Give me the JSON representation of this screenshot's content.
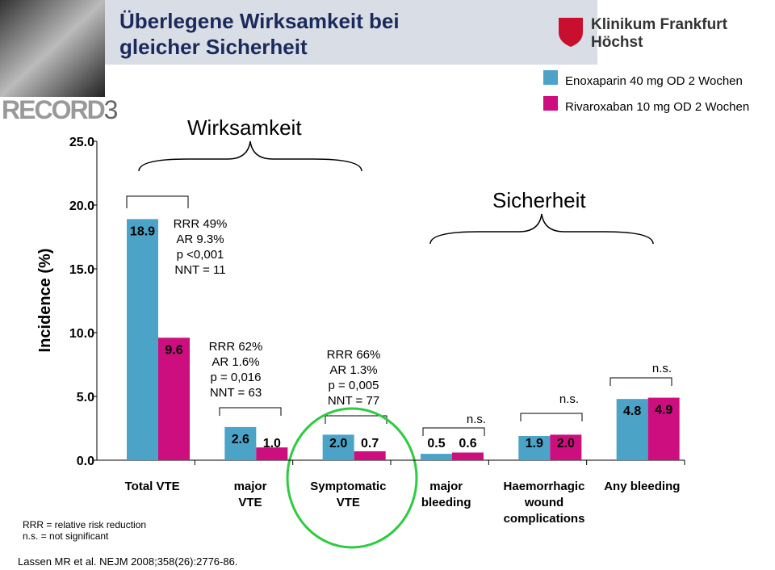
{
  "header": {
    "title": "Überlegene Wirksamkeit bei\ngleicher Sicherheit",
    "logo_text": "Klinikum Frankfurt Höchst",
    "study": "RECORD",
    "study_number": "3"
  },
  "chart_data": {
    "type": "bar",
    "ylabel": "Incidence (%)",
    "categories": [
      "Total VTE",
      "major\nVTE",
      "Symptomatic\nVTE",
      "major\nbleeding",
      "Haemorrhagic\nwound\ncomplications",
      "Any bleeding"
    ],
    "series": [
      {
        "name": "Enoxaparin 40 mg OD 2 Wochen",
        "color": "#4ba3c7",
        "values": [
          18.9,
          2.6,
          2.0,
          0.5,
          1.9,
          4.8
        ],
        "value_labels": [
          "18.9",
          "2.6",
          "2.0",
          "0.5",
          "1.9",
          "4.8"
        ]
      },
      {
        "name": "Rivaroxaban 10 mg OD 2 Wochen",
        "color": "#cc0e7f",
        "values": [
          9.6,
          1.0,
          0.7,
          0.6,
          2.0,
          4.9
        ],
        "value_labels": [
          "9.6",
          "1.0",
          "0.7",
          "0.6",
          "2.0",
          "4.9"
        ]
      }
    ],
    "ylim": [
      0,
      25
    ],
    "yticks": [
      {
        "value": 0,
        "label": "0.0"
      },
      {
        "value": 5,
        "label": "5.0"
      },
      {
        "value": 10,
        "label": "10.0"
      },
      {
        "value": 15,
        "label": "15.0"
      },
      {
        "value": 20,
        "label": "20.0"
      },
      {
        "value": 25,
        "label": "25.0"
      }
    ],
    "group_labels": [
      "Wirksamkeit",
      "Sicherheit"
    ],
    "annotations": [
      "RRR 49%\nAR 9.3%\np <0,001\nNNT = 11",
      "RRR 62%\nAR 1.6%\np = 0,016\nNNT = 63",
      "RRR 66%\nAR 1.3%\np = 0,005\nNNT = 77",
      "n.s.",
      "n.s.",
      "n.s."
    ]
  },
  "footnotes": [
    "RRR = relative risk reduction",
    "n.s. = not significant"
  ],
  "citation": "Lassen MR et al. NEJM 2008;358(26):2776-86."
}
